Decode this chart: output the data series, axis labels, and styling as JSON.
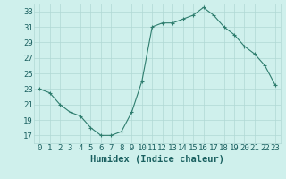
{
  "x": [
    0,
    1,
    2,
    3,
    4,
    5,
    6,
    7,
    8,
    9,
    10,
    11,
    12,
    13,
    14,
    15,
    16,
    17,
    18,
    19,
    20,
    21,
    22,
    23
  ],
  "y": [
    23,
    22.5,
    21,
    20,
    19.5,
    18,
    17,
    17,
    17.5,
    20,
    24,
    31,
    31.5,
    31.5,
    32,
    32.5,
    33.5,
    32.5,
    31,
    30,
    28.5,
    27.5,
    26,
    23.5
  ],
  "line_color": "#2e7d6e",
  "marker": "+",
  "marker_color": "#2e7d6e",
  "bg_color": "#cff0ec",
  "grid_color": "#b0d8d4",
  "tick_label_color": "#1a6060",
  "xlabel": "Humidex (Indice chaleur)",
  "xlim": [
    -0.5,
    23.5
  ],
  "ylim": [
    16,
    34
  ],
  "yticks": [
    17,
    19,
    21,
    23,
    25,
    27,
    29,
    31,
    33
  ],
  "xticks": [
    0,
    1,
    2,
    3,
    4,
    5,
    6,
    7,
    8,
    9,
    10,
    11,
    12,
    13,
    14,
    15,
    16,
    17,
    18,
    19,
    20,
    21,
    22,
    23
  ],
  "xlabel_fontsize": 7.5,
  "tick_fontsize": 6.5
}
